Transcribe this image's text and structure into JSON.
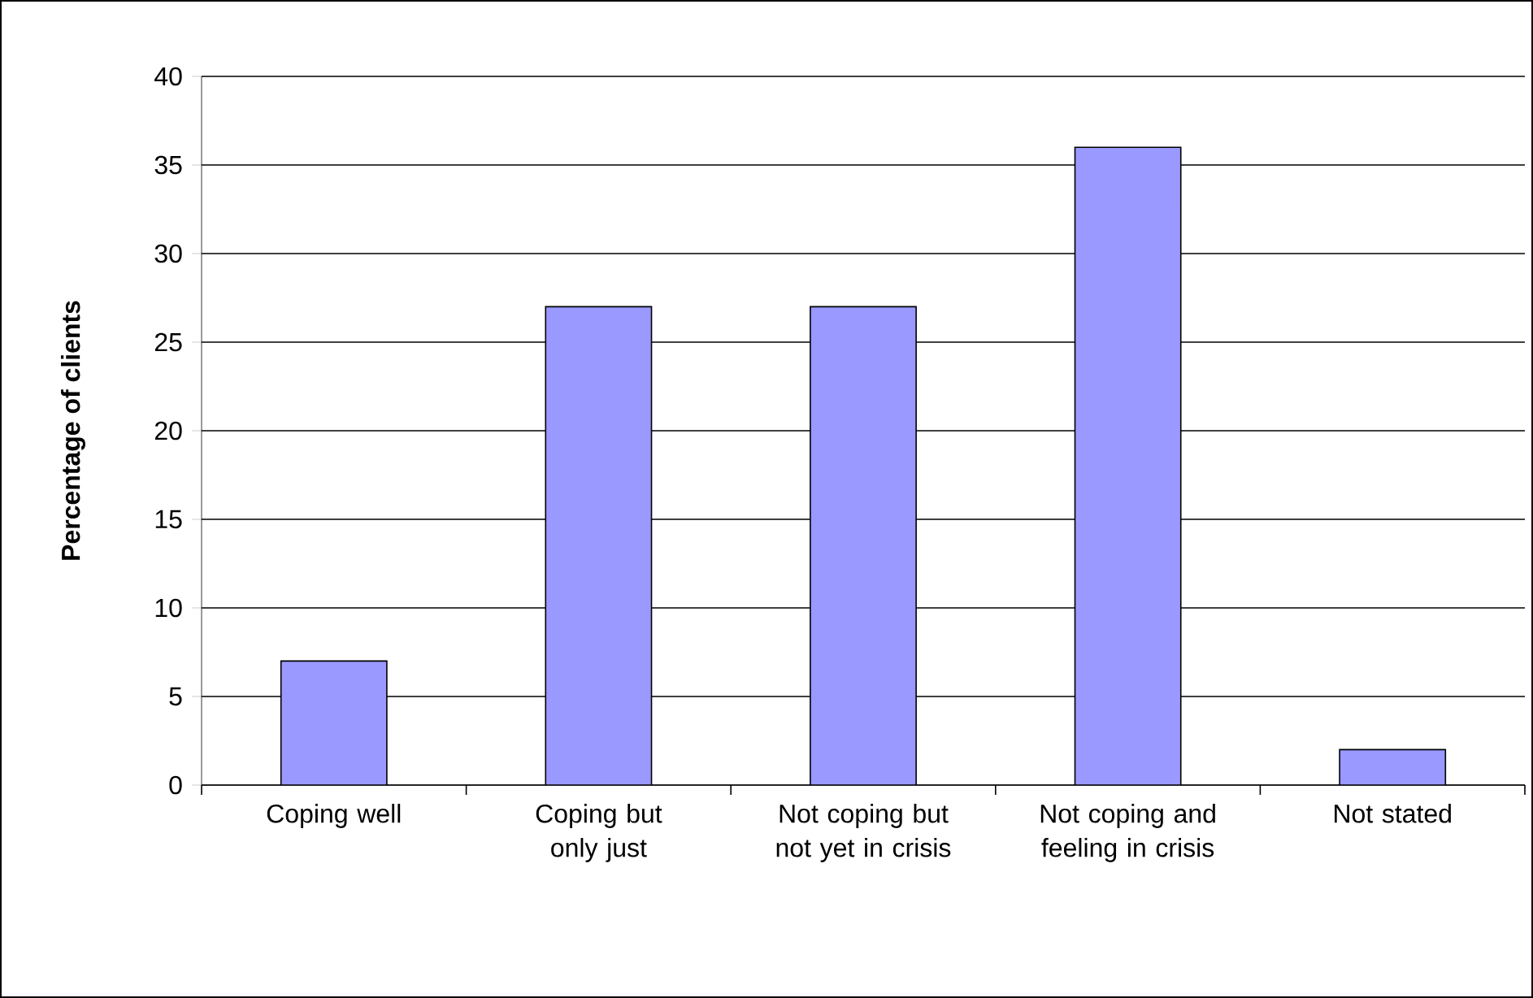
{
  "chart_data": {
    "type": "bar",
    "categories": [
      "Coping well",
      "Coping but only just",
      "Not coping but not yet in crisis",
      "Not coping and feeling in crisis",
      "Not stated"
    ],
    "values": [
      7,
      27,
      27,
      36,
      2
    ],
    "color": "#9999ff",
    "ylabel": "Percentage of clients",
    "ylim": [
      0,
      40
    ],
    "yticks": [
      0,
      5,
      10,
      15,
      20,
      25,
      30,
      35,
      40
    ],
    "grid": "y"
  }
}
